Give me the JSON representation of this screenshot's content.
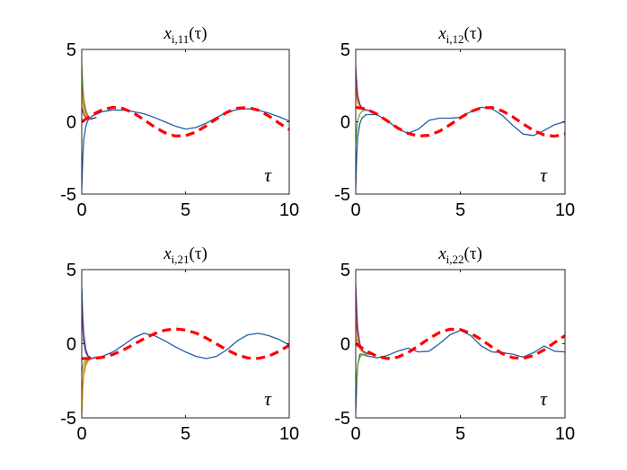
{
  "chart_data": [
    {
      "type": "line",
      "title_var": "x",
      "title_sub": "i,11",
      "title_arg": "(τ)",
      "xlabel": "τ",
      "xlim": [
        0,
        10
      ],
      "ylim": [
        -5,
        5
      ],
      "xticks": [
        0,
        5,
        10
      ],
      "yticks": [
        -5,
        0,
        5
      ],
      "xtick_labels": [
        "0",
        "5",
        "10"
      ],
      "ytick_labels": [
        "-5",
        "0",
        "5"
      ],
      "grid": false,
      "reference": {
        "style": "dashed",
        "color": "#ff0000",
        "x": [
          0,
          0.5,
          1,
          1.5,
          2,
          2.5,
          3,
          3.5,
          4,
          4.5,
          5,
          5.5,
          6,
          6.5,
          7,
          7.5,
          8,
          8.5,
          9,
          9.5,
          10
        ],
        "y": [
          0.0,
          0.48,
          0.84,
          1.0,
          0.91,
          0.6,
          0.14,
          -0.35,
          -0.76,
          -0.98,
          -0.96,
          -0.71,
          -0.28,
          0.22,
          0.66,
          0.94,
          0.99,
          0.8,
          0.41,
          -0.08,
          -0.54
        ]
      },
      "series": [
        {
          "color": "#1f5fa8",
          "x": [
            0,
            0.05,
            0.1,
            0.2,
            0.3,
            0.5,
            1,
            1.5,
            2,
            2.5,
            3,
            3.5,
            4,
            4.5,
            5,
            5.5,
            6,
            6.5,
            7,
            7.5,
            8,
            8.5,
            9,
            9.5,
            10
          ],
          "y": [
            -4.6,
            -2.4,
            -1.2,
            -0.3,
            0.1,
            0.4,
            0.7,
            0.82,
            0.8,
            0.7,
            0.55,
            0.3,
            0.0,
            -0.3,
            -0.5,
            -0.4,
            -0.1,
            0.3,
            0.65,
            0.85,
            0.9,
            0.8,
            0.6,
            0.35,
            0.05
          ]
        },
        {
          "color": "#d95319",
          "x": [
            0,
            0.05,
            0.1,
            0.2,
            0.3,
            0.4,
            0.5,
            0.7
          ],
          "y": [
            3.0,
            1.9,
            1.2,
            0.6,
            0.35,
            0.25,
            0.22,
            0.3
          ]
        },
        {
          "color": "#edb120",
          "x": [
            0,
            0.05,
            0.1,
            0.2,
            0.3,
            0.4,
            0.5,
            0.7
          ],
          "y": [
            2.0,
            1.3,
            0.8,
            0.4,
            0.25,
            0.2,
            0.2,
            0.3
          ]
        },
        {
          "color": "#77ac30",
          "x": [
            0,
            0.05,
            0.1,
            0.2,
            0.3,
            0.4,
            0.5,
            0.7
          ],
          "y": [
            4.0,
            2.6,
            1.6,
            0.8,
            0.45,
            0.3,
            0.25,
            0.3
          ]
        },
        {
          "color": "#7e2f8e",
          "x": [
            0,
            0.05,
            0.1,
            0.2,
            0.3,
            0.4,
            0.5,
            0.7
          ],
          "y": [
            1.0,
            0.7,
            0.5,
            0.3,
            0.22,
            0.2,
            0.2,
            0.3
          ]
        }
      ]
    },
    {
      "type": "line",
      "title_var": "x",
      "title_sub": "i,12",
      "title_arg": "(τ)",
      "xlabel": "τ",
      "xlim": [
        0,
        10
      ],
      "ylim": [
        -5,
        5
      ],
      "xticks": [
        0,
        5,
        10
      ],
      "yticks": [
        -5,
        0,
        5
      ],
      "xtick_labels": [
        "0",
        "5",
        "10"
      ],
      "ytick_labels": [
        "-5",
        "0",
        "5"
      ],
      "grid": false,
      "reference": {
        "style": "dashed",
        "color": "#ff0000",
        "x": [
          0,
          0.5,
          1,
          1.5,
          2,
          2.5,
          3,
          3.5,
          4,
          4.5,
          5,
          5.5,
          6,
          6.5,
          7,
          7.5,
          8,
          8.5,
          9,
          9.5,
          10
        ],
        "y": [
          1.0,
          0.88,
          0.54,
          0.07,
          -0.42,
          -0.8,
          -0.99,
          -0.94,
          -0.65,
          -0.21,
          0.28,
          0.71,
          0.96,
          0.98,
          0.75,
          0.35,
          -0.15,
          -0.6,
          -0.91,
          -1.0,
          -0.84
        ]
      },
      "series": [
        {
          "color": "#1f5fa8",
          "x": [
            0,
            0.05,
            0.1,
            0.2,
            0.3,
            0.5,
            1,
            1.5,
            2,
            2.5,
            3,
            3.5,
            4,
            4.5,
            5,
            5.5,
            6,
            6.5,
            7,
            7.5,
            8,
            8.5,
            9,
            9.5,
            10
          ],
          "y": [
            -4.6,
            -2.2,
            -1.0,
            -0.1,
            0.25,
            0.5,
            0.5,
            0.1,
            -0.5,
            -0.8,
            -0.5,
            0.1,
            0.25,
            0.25,
            0.3,
            0.7,
            1.0,
            0.9,
            0.45,
            -0.25,
            -0.85,
            -0.95,
            -0.6,
            -0.2,
            0.0
          ]
        },
        {
          "color": "#d95319",
          "x": [
            0,
            0.05,
            0.1,
            0.2,
            0.3,
            0.4,
            0.5,
            0.7
          ],
          "y": [
            2.5,
            1.9,
            1.5,
            1.1,
            0.9,
            0.85,
            0.8,
            0.75
          ]
        },
        {
          "color": "#edb120",
          "x": [
            0,
            0.05,
            0.1,
            0.2,
            0.3,
            0.4,
            0.5,
            0.7
          ],
          "y": [
            1.8,
            1.5,
            1.25,
            1.0,
            0.9,
            0.85,
            0.8,
            0.75
          ]
        },
        {
          "color": "#77ac30",
          "x": [
            0,
            0.05,
            0.1,
            0.2,
            0.3,
            0.4,
            0.5,
            0.7
          ],
          "y": [
            -1.5,
            -0.6,
            0.1,
            0.55,
            0.72,
            0.78,
            0.8,
            0.75
          ]
        },
        {
          "color": "#7e2f8e",
          "x": [
            0,
            0.05,
            0.1,
            0.2,
            0.3,
            0.4,
            0.5,
            0.7
          ],
          "y": [
            3.8,
            2.6,
            1.8,
            1.2,
            0.95,
            0.87,
            0.82,
            0.75
          ]
        }
      ]
    },
    {
      "type": "line",
      "title_var": "x",
      "title_sub": "i,21",
      "title_arg": "(τ)",
      "xlabel": "τ",
      "xlim": [
        0,
        10
      ],
      "ylim": [
        -5,
        5
      ],
      "xticks": [
        0,
        5,
        10
      ],
      "yticks": [
        -5,
        0,
        5
      ],
      "xtick_labels": [
        "0",
        "5",
        "10"
      ],
      "ytick_labels": [
        "-5",
        "0",
        "5"
      ],
      "grid": false,
      "reference": {
        "style": "dashed",
        "color": "#ff0000",
        "x": [
          0,
          0.5,
          1,
          1.5,
          2,
          2.5,
          3,
          3.5,
          4,
          4.5,
          5,
          5.5,
          6,
          6.5,
          7,
          7.5,
          8,
          8.5,
          9,
          9.5,
          10
        ],
        "y": [
          -1.0,
          -0.99,
          -0.92,
          -0.73,
          -0.42,
          -0.05,
          0.34,
          0.68,
          0.91,
          1.0,
          0.93,
          0.72,
          0.38,
          -0.02,
          -0.42,
          -0.76,
          -0.96,
          -0.99,
          -0.84,
          -0.52,
          -0.1
        ]
      },
      "series": [
        {
          "color": "#1f5fa8",
          "x": [
            0,
            0.05,
            0.1,
            0.2,
            0.3,
            0.5,
            1,
            1.5,
            2,
            2.5,
            3,
            3.5,
            4,
            4.5,
            5,
            5.5,
            6,
            6.5,
            7,
            7.5,
            8,
            8.5,
            9,
            9.5,
            10
          ],
          "y": [
            3.8,
            1.8,
            0.6,
            -0.4,
            -0.8,
            -1.0,
            -0.85,
            -0.55,
            -0.1,
            0.4,
            0.7,
            0.55,
            0.2,
            -0.2,
            -0.55,
            -0.85,
            -1.0,
            -0.85,
            -0.4,
            0.2,
            0.6,
            0.7,
            0.55,
            0.3,
            -0.1
          ]
        },
        {
          "color": "#d95319",
          "x": [
            0,
            0.05,
            0.1,
            0.2,
            0.3,
            0.4,
            0.5,
            0.7
          ],
          "y": [
            -3.5,
            -2.6,
            -1.9,
            -1.3,
            -1.1,
            -1.0,
            -1.0,
            -0.9
          ]
        },
        {
          "color": "#edb120",
          "x": [
            0,
            0.05,
            0.1,
            0.2,
            0.3,
            0.4,
            0.5,
            0.7
          ],
          "y": [
            -4.8,
            -3.2,
            -2.2,
            -1.5,
            -1.2,
            -1.05,
            -1.0,
            -0.9
          ]
        },
        {
          "color": "#77ac30",
          "x": [
            0,
            0.05,
            0.1,
            0.2,
            0.3,
            0.4,
            0.5,
            0.7
          ],
          "y": [
            -2.0,
            -1.6,
            -1.3,
            -1.1,
            -1.0,
            -1.0,
            -0.98,
            -0.9
          ]
        },
        {
          "color": "#7e2f8e",
          "x": [
            0,
            0.05,
            0.1,
            0.2,
            0.3,
            0.4,
            0.5,
            0.7
          ],
          "y": [
            2.5,
            1.1,
            0.1,
            -0.6,
            -0.85,
            -0.95,
            -0.98,
            -0.9
          ]
        }
      ]
    },
    {
      "type": "line",
      "title_var": "x",
      "title_sub": "i,22",
      "title_arg": "(τ)",
      "xlabel": "τ",
      "xlim": [
        0,
        10
      ],
      "ylim": [
        -5,
        5
      ],
      "xticks": [
        0,
        5,
        10
      ],
      "yticks": [
        -5,
        0,
        5
      ],
      "xtick_labels": [
        "0",
        "5",
        "10"
      ],
      "ytick_labels": [
        "-5",
        "0",
        "5"
      ],
      "grid": false,
      "reference": {
        "style": "dashed",
        "color": "#ff0000",
        "x": [
          0,
          0.5,
          1,
          1.5,
          2,
          2.5,
          3,
          3.5,
          4,
          4.5,
          5,
          5.5,
          6,
          6.5,
          7,
          7.5,
          8,
          8.5,
          9,
          9.5,
          10
        ],
        "y": [
          0.0,
          -0.48,
          -0.84,
          -1.0,
          -0.91,
          -0.6,
          -0.14,
          0.35,
          0.76,
          0.98,
          0.96,
          0.71,
          0.28,
          -0.22,
          -0.66,
          -0.94,
          -0.99,
          -0.8,
          -0.41,
          0.08,
          0.54
        ]
      },
      "series": [
        {
          "color": "#1f5fa8",
          "x": [
            0,
            0.05,
            0.1,
            0.2,
            0.3,
            0.5,
            1,
            1.5,
            2,
            2.5,
            3,
            3.5,
            4,
            4.5,
            5,
            5.5,
            6,
            6.5,
            7,
            7.5,
            8,
            8.5,
            9,
            9.5,
            10
          ],
          "y": [
            -4.6,
            -2.5,
            -1.4,
            -0.7,
            -0.7,
            -0.8,
            -0.95,
            -0.8,
            -0.5,
            -0.3,
            -0.55,
            -0.5,
            0.0,
            0.6,
            0.9,
            0.55,
            -0.15,
            -0.55,
            -0.6,
            -0.7,
            -0.9,
            -0.6,
            -0.15,
            -0.5,
            -0.55
          ]
        },
        {
          "color": "#d95319",
          "x": [
            0,
            0.05,
            0.1,
            0.2,
            0.3,
            0.4,
            0.5,
            0.7
          ],
          "y": [
            2.0,
            1.0,
            0.3,
            -0.3,
            -0.5,
            -0.6,
            -0.65,
            -0.7
          ]
        },
        {
          "color": "#edb120",
          "x": [
            0,
            0.05,
            0.1,
            0.2,
            0.3,
            0.4,
            0.5,
            0.7
          ],
          "y": [
            0.5,
            0.2,
            -0.1,
            -0.4,
            -0.55,
            -0.62,
            -0.66,
            -0.7
          ]
        },
        {
          "color": "#77ac30",
          "x": [
            0,
            0.05,
            0.1,
            0.2,
            0.3,
            0.4,
            0.5,
            0.7
          ],
          "y": [
            -3.0,
            -2.0,
            -1.4,
            -0.9,
            -0.75,
            -0.7,
            -0.7,
            -0.7
          ]
        },
        {
          "color": "#7e2f8e",
          "x": [
            0,
            0.05,
            0.1,
            0.2,
            0.3,
            0.4,
            0.5,
            0.7
          ],
          "y": [
            4.0,
            2.2,
            1.0,
            0.0,
            -0.4,
            -0.55,
            -0.62,
            -0.7
          ]
        }
      ]
    }
  ]
}
